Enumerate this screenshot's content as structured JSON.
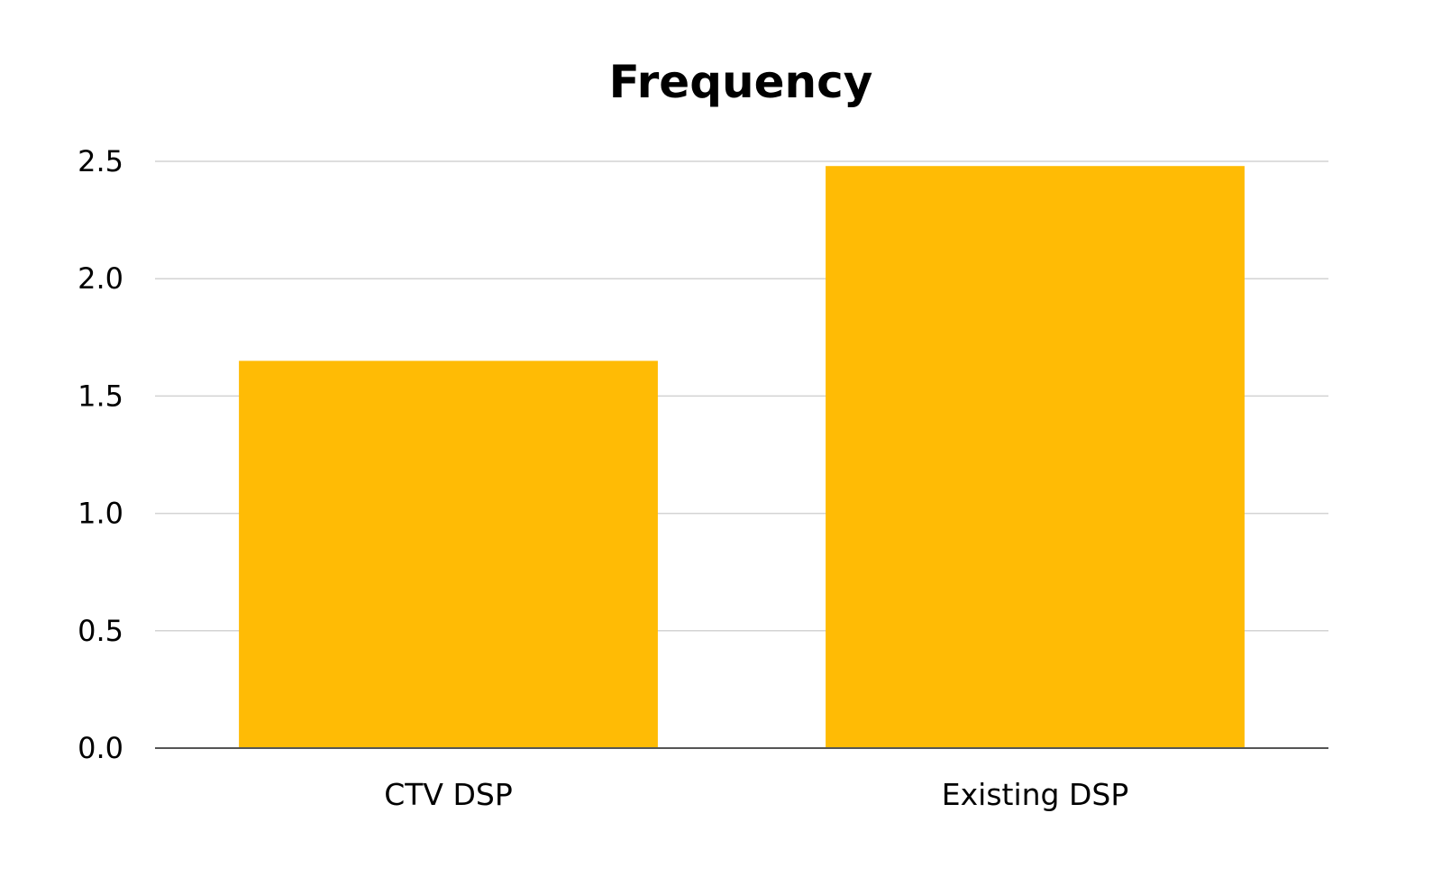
{
  "chart_data": {
    "type": "bar",
    "title": "Frequency",
    "categories": [
      "CTV DSP",
      "Existing DSP"
    ],
    "values": [
      1.65,
      2.48
    ],
    "ylim": [
      0,
      2.5
    ],
    "yticks": [
      "0.0",
      "0.5",
      "1.0",
      "1.5",
      "2.0",
      "2.5"
    ],
    "grid": true,
    "legend": "none",
    "bar_color": "#FFBB05"
  }
}
